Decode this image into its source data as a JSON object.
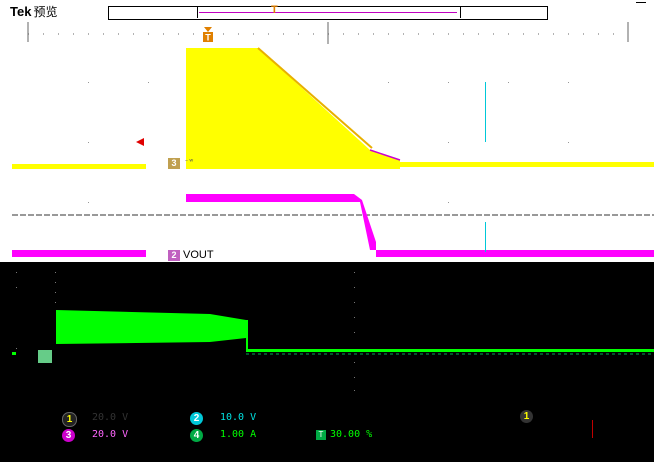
{
  "header": {
    "brand": "Tek",
    "mode": "预览"
  },
  "trigger": {
    "marker": "T"
  },
  "channels": {
    "ch3_marker": "3",
    "ch2_marker": "2",
    "ch4_marker": "4",
    "ch2_label": "VOUT"
  },
  "readouts": {
    "ch1": {
      "badge": "1",
      "scale": "20.0 V"
    },
    "ch3": {
      "badge": "3",
      "scale": "20.0 V"
    },
    "ch2": {
      "badge": "2",
      "scale": "10.0 V"
    },
    "ch4": {
      "badge": "4",
      "scale": "1.00 A"
    },
    "position": {
      "value": "30.00 %"
    },
    "trigger_source": {
      "badge": "1"
    }
  },
  "colors": {
    "ch1": "#ffff00",
    "ch2": "#00e0e0",
    "ch3": "#ff00ff",
    "ch4": "#00ff00",
    "trigger": "#e08000"
  }
}
